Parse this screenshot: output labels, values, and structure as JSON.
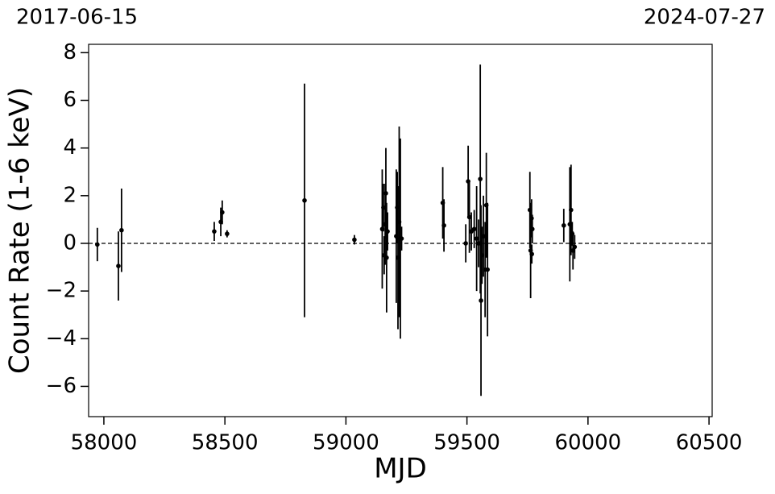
{
  "chart_data": {
    "type": "errorbar",
    "x_label": "MJD",
    "y_label": "Count Rate (1-6 keV)",
    "annotations": [
      "2017-06-15",
      "2024-07-27"
    ],
    "xlim": [
      57937,
      60513
    ],
    "ylim": [
      -7.27,
      8.35
    ],
    "xticks": [
      58000,
      58500,
      59000,
      59500,
      60000,
      60500
    ],
    "yticks": [
      {
        "value": -6,
        "label": "−6"
      },
      {
        "value": -4,
        "label": "−4"
      },
      {
        "value": -2,
        "label": "−2"
      },
      0,
      2,
      4,
      6,
      8
    ],
    "hline": 0,
    "grid": false,
    "series": [
      {
        "color": "#000000",
        "x": [
          57973,
          58060,
          58073,
          58456,
          58483,
          58489,
          58509,
          58829,
          59035,
          59150,
          59155,
          59158,
          59162,
          59165,
          59168,
          59172,
          59208,
          59212,
          59215,
          59220,
          59225,
          59230,
          59400,
          59405,
          59495,
          59505,
          59510,
          59518,
          59530,
          59540,
          59548,
          59555,
          59558,
          59562,
          59568,
          59575,
          59580,
          59585,
          59760,
          59763,
          59767,
          59770,
          59768,
          59900,
          59925,
          59930,
          59935,
          59938,
          59945
        ],
        "values": [
          -0.05,
          -0.95,
          0.55,
          0.5,
          0.9,
          1.3,
          0.4,
          1.8,
          0.15,
          0.6,
          1.5,
          -0.5,
          0.8,
          2.1,
          -0.6,
          0.5,
          0.3,
          1.5,
          -0.6,
          0.9,
          0.2,
          0.2,
          1.7,
          0.75,
          0.0,
          2.6,
          1.1,
          0.5,
          0.6,
          0.2,
          0.0,
          2.7,
          -2.4,
          -0.5,
          0.3,
          -1.1,
          1.6,
          -1.1,
          1.4,
          -0.3,
          1.05,
          0.6,
          -0.45,
          0.75,
          0.8,
          1.4,
          0.4,
          -0.3,
          -0.15
        ],
        "errors": [
          0.7,
          1.45,
          1.75,
          0.4,
          0.6,
          0.5,
          0.15,
          4.9,
          0.2,
          2.5,
          1.0,
          0.8,
          1.7,
          1.9,
          2.3,
          0.8,
          2.8,
          1.5,
          3.0,
          4.0,
          4.2,
          0.5,
          1.5,
          1.1,
          0.8,
          1.5,
          1.5,
          0.8,
          0.8,
          2.2,
          1.0,
          4.8,
          4.0,
          1.2,
          1.7,
          2.0,
          2.2,
          2.8,
          1.6,
          2.0,
          0.8,
          0.6,
          0.4,
          0.7,
          2.4,
          1.9,
          0.5,
          0.8,
          0.5
        ]
      }
    ]
  }
}
